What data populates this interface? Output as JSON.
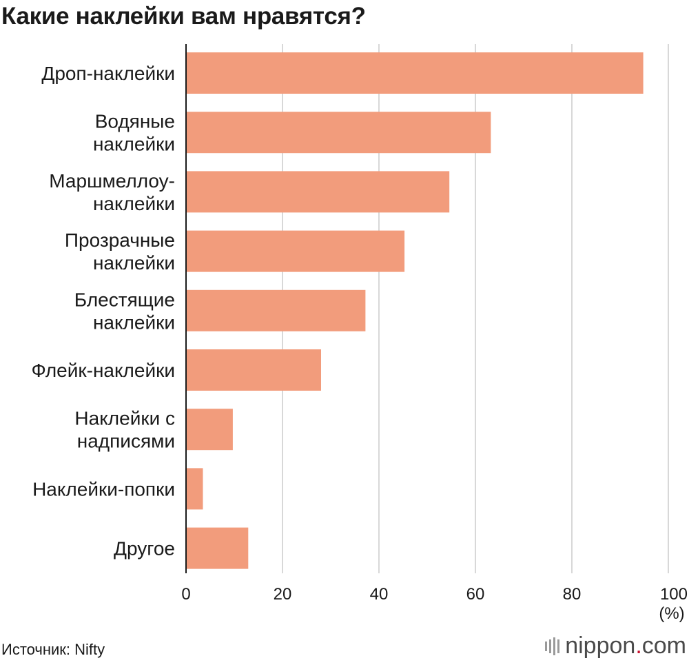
{
  "title": "Какие наклейки вам нравятся?",
  "source": "Источник: Nifty",
  "logo": {
    "name": "nippon",
    "dot": ".",
    "tld": "com"
  },
  "colors": {
    "bar": "#f29c7c",
    "grid": "#cccccc",
    "axis": "#1a1a1a"
  },
  "chart_data": {
    "type": "bar",
    "orientation": "horizontal",
    "title": "Какие наклейки вам нравятся?",
    "categories": [
      [
        "Дроп-наклейки"
      ],
      [
        "Водяные",
        "наклейки"
      ],
      [
        "Маршмеллоу-",
        "наклейки"
      ],
      [
        "Прозрачные",
        "наклейки"
      ],
      [
        "Блестящие",
        "наклейки"
      ],
      [
        "Флейк-наклейки"
      ],
      [
        "Наклейки с",
        "надписями"
      ],
      [
        "Наклейки-попки"
      ],
      [
        "Другое"
      ]
    ],
    "values": [
      94.8,
      63.2,
      54.6,
      45.3,
      37.2,
      28.0,
      9.7,
      3.5,
      12.9
    ],
    "xlim": [
      0,
      100
    ],
    "xticks": [
      0,
      20,
      40,
      60,
      80,
      100
    ],
    "unit_label": "(%)",
    "grid": true
  }
}
